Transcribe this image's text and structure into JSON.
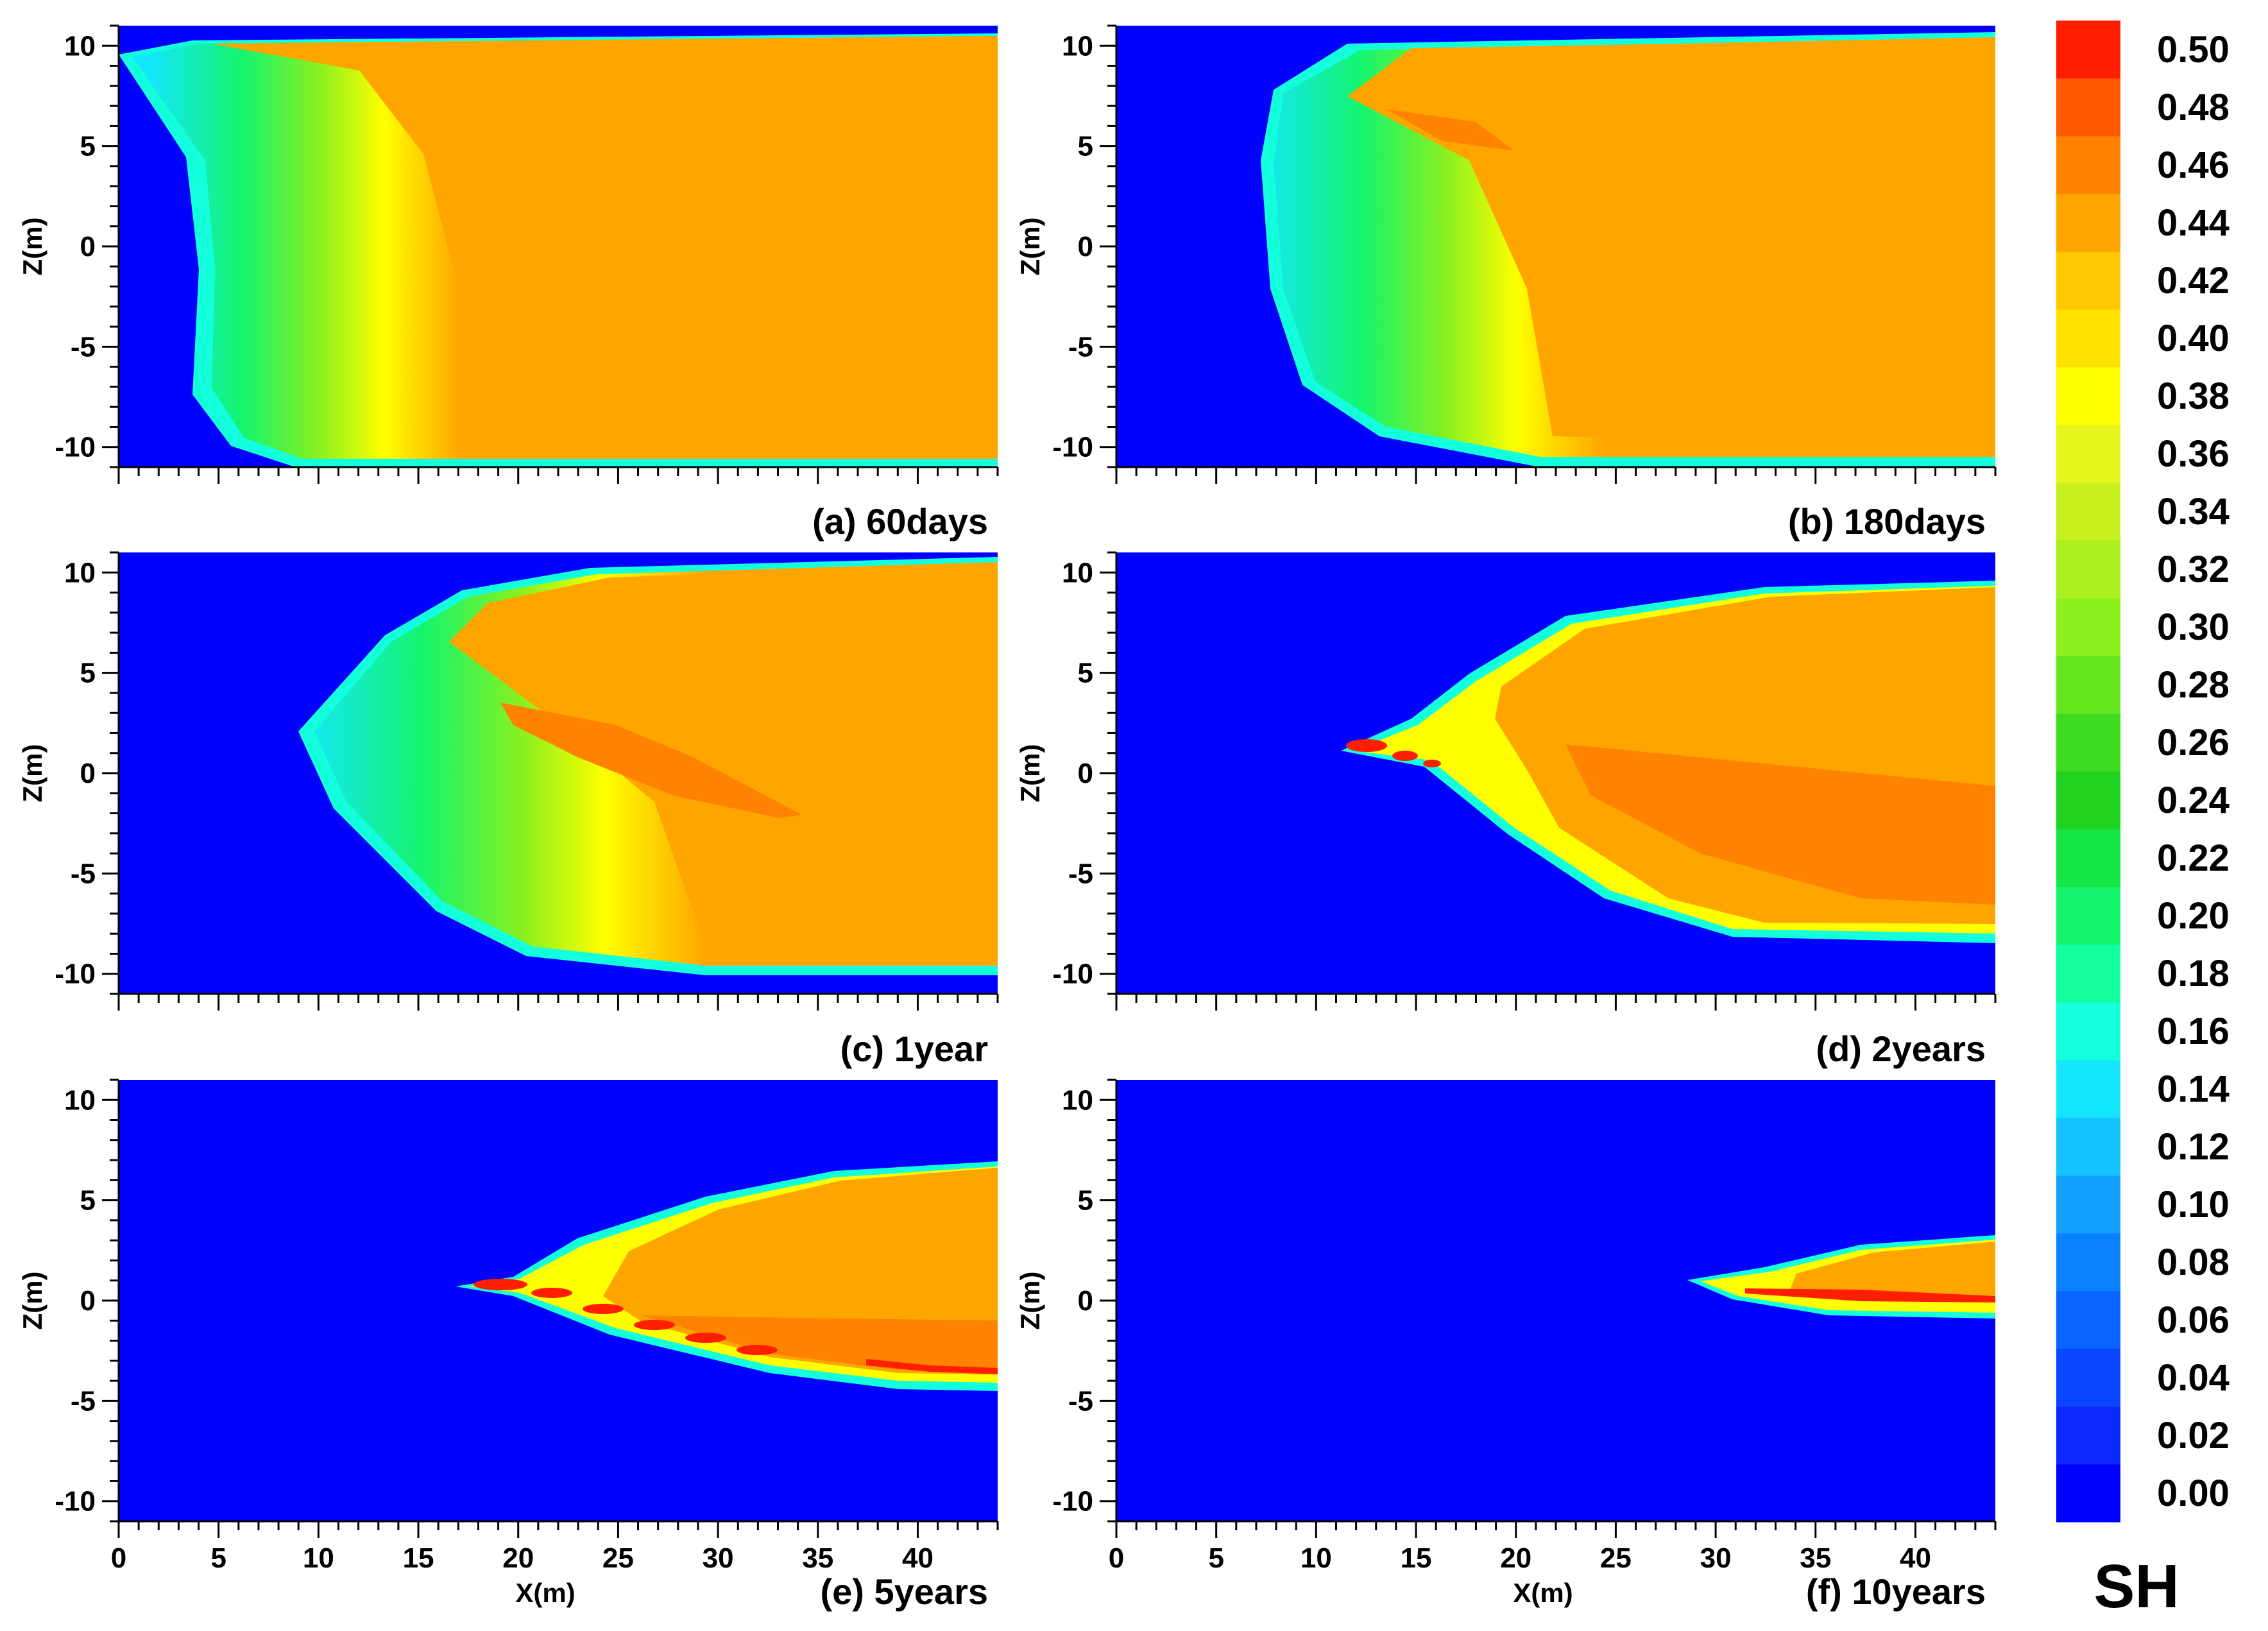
{
  "chart_data": {
    "type": "heatmap",
    "variable": "SH",
    "colorbar": {
      "title": "SH",
      "levels": [
        0.0,
        0.02,
        0.04,
        0.06,
        0.08,
        0.1,
        0.12,
        0.14,
        0.16,
        0.18,
        0.2,
        0.22,
        0.24,
        0.26,
        0.28,
        0.3,
        0.32,
        0.34,
        0.36,
        0.38,
        0.4,
        0.42,
        0.44,
        0.46,
        0.48,
        0.5
      ],
      "labels": [
        "0.00",
        "0.02",
        "0.04",
        "0.06",
        "0.08",
        "0.10",
        "0.12",
        "0.14",
        "0.16",
        "0.18",
        "0.20",
        "0.22",
        "0.24",
        "0.26",
        "0.28",
        "0.30",
        "0.32",
        "0.34",
        "0.36",
        "0.38",
        "0.40",
        "0.42",
        "0.44",
        "0.46",
        "0.48",
        "0.50"
      ],
      "colors": [
        "#0000ff",
        "#0a28ff",
        "#0a46ff",
        "#0a64ff",
        "#0a82ff",
        "#14a0ff",
        "#14c3ff",
        "#14e6ff",
        "#14ffdc",
        "#14ffa0",
        "#14f56e",
        "#14e646",
        "#1ed21e",
        "#3cdc1e",
        "#64e61e",
        "#8cf01e",
        "#aaf01e",
        "#c8f01e",
        "#e6f51e",
        "#ffff00",
        "#ffe100",
        "#ffc800",
        "#ffa500",
        "#ff8200",
        "#ff5a00",
        "#ff1e00"
      ]
    },
    "xlabel": "X(m)",
    "ylabel": "Z(m)",
    "xlim": [
      0,
      44
    ],
    "ylim": [
      -11,
      11
    ],
    "x_ticks": [
      0,
      5,
      10,
      15,
      20,
      25,
      30,
      35,
      40
    ],
    "x_tick_labels": [
      "0",
      "5",
      "10",
      "15",
      "20",
      "25",
      "30",
      "35",
      "40"
    ],
    "y_ticks": [
      10,
      5,
      0,
      -5,
      -10
    ],
    "y_tick_labels": [
      "10",
      "5",
      "0",
      "-5",
      "-10"
    ],
    "panels": [
      {
        "id": "a",
        "label": "(a) 60days",
        "front_x": 5
      },
      {
        "id": "b",
        "label": "(b) 180days",
        "front_x": 7.5
      },
      {
        "id": "c",
        "label": "(c) 1year",
        "front_x": 9.5
      },
      {
        "id": "d",
        "label": "(d) 2years",
        "front_x": 11
      },
      {
        "id": "e",
        "label": "(e) 5years",
        "front_x": 17
      },
      {
        "id": "f",
        "label": "(f) 10years",
        "front_x": 29
      }
    ]
  }
}
